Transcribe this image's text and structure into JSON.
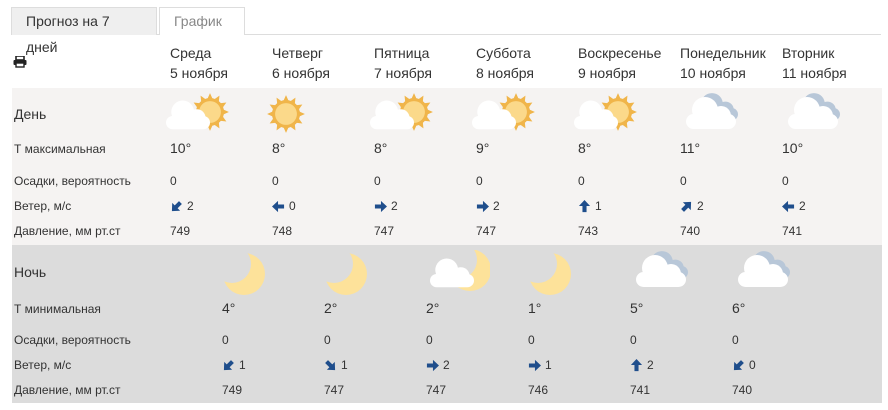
{
  "tabs": [
    {
      "label": "Прогноз на 7 дней",
      "active": true
    },
    {
      "label": "График",
      "active": false
    }
  ],
  "print_icon": "printer-icon",
  "days": [
    {
      "weekday": "Среда",
      "date": "5 ноября"
    },
    {
      "weekday": "Четверг",
      "date": "6 ноября"
    },
    {
      "weekday": "Пятница",
      "date": "7 ноября"
    },
    {
      "weekday": "Суббота",
      "date": "8 ноября"
    },
    {
      "weekday": "Воскресенье",
      "date": "9 ноября"
    },
    {
      "weekday": "Понедельник",
      "date": "10 ноября"
    },
    {
      "weekday": "Вторник",
      "date": "11 ноября"
    }
  ],
  "day": {
    "title": "День",
    "labels": {
      "temp": "Т максимальная",
      "precip": "Осадки, вероятность",
      "wind": "Ветер, м/с",
      "pressure": "Давление, мм рт.ст"
    },
    "icons": [
      "cloud-sun",
      "sun",
      "cloud-sun",
      "cloud-sun",
      "cloud-sun",
      "cloudy",
      "cloudy"
    ],
    "temp": [
      "10°",
      "8°",
      "8°",
      "9°",
      "8°",
      "11°",
      "10°"
    ],
    "precip": [
      "0",
      "0",
      "0",
      "0",
      "0",
      "0",
      "0"
    ],
    "wind_dir": [
      "down-left",
      "left",
      "right",
      "right",
      "up",
      "up-right",
      "left"
    ],
    "wind": [
      "2",
      "0",
      "2",
      "2",
      "1",
      "2",
      "2"
    ],
    "pressure": [
      "749",
      "748",
      "747",
      "747",
      "743",
      "740",
      "741"
    ]
  },
  "night": {
    "title": "Ночь",
    "labels": {
      "temp": "Т минимальная",
      "precip": "Осадки, вероятность",
      "wind": "Ветер, м/с",
      "pressure": "Давление, мм рт.ст"
    },
    "icons": [
      "moon",
      "moon",
      "cloud-moon",
      "moon",
      "cloudy",
      "cloudy"
    ],
    "temp": [
      "4°",
      "2°",
      "2°",
      "1°",
      "5°",
      "6°"
    ],
    "precip": [
      "0",
      "0",
      "0",
      "0",
      "0",
      "0"
    ],
    "wind_dir": [
      "down-left",
      "down-right",
      "right",
      "right",
      "up",
      "down-left"
    ],
    "wind": [
      "1",
      "1",
      "2",
      "1",
      "2",
      "0"
    ],
    "pressure": [
      "749",
      "747",
      "747",
      "746",
      "741",
      "740"
    ]
  },
  "colors": {
    "sun": "#f0b54a",
    "moon": "#fde29a",
    "arrow": "#1f4e8c",
    "day_bg": "#f5f3f2",
    "night_bg": "#dcdcdc"
  }
}
